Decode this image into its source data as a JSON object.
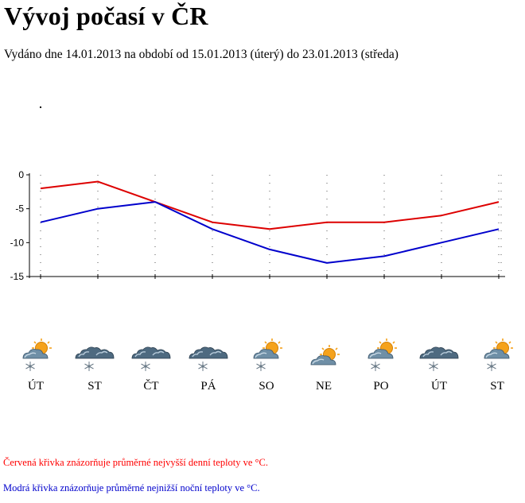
{
  "page": {
    "title": "Vývoj počasí v ČR",
    "subtitle": "Vydáno dne 14.01.2013 na období od 15.01.2013 (úterý) do 23.01.2013 (středa)",
    "note_red": "Červená křivka znázorňuje průměrné nejvyšší denní teploty ve °C.",
    "note_blue": "Modrá křivka znázorňuje průměrné nejnižší noční teploty ve °C."
  },
  "colors": {
    "max_line": "#dd0000",
    "min_line": "#0000cc"
  },
  "chart_data": {
    "type": "line",
    "categories": [
      "ÚT",
      "ST",
      "ČT",
      "PÁ",
      "SO",
      "NE",
      "PO",
      "ÚT",
      "ST"
    ],
    "series": [
      {
        "values": [
          -2,
          -1,
          -4,
          -7,
          -8,
          -7,
          -7,
          -6,
          -4
        ]
      },
      {
        "values": [
          -7,
          -5,
          -4,
          -8,
          -11,
          -13,
          -12,
          -10,
          -8
        ]
      }
    ],
    "yticks": [
      0,
      -5,
      -10,
      -15
    ],
    "ylim": [
      -15,
      0
    ],
    "grid": "dotted"
  },
  "forecast": [
    {
      "day": "ÚT",
      "icon": "partly-cloudy-snow-icon"
    },
    {
      "day": "ST",
      "icon": "cloudy-snow-icon"
    },
    {
      "day": "ČT",
      "icon": "cloudy-snow-icon"
    },
    {
      "day": "PÁ",
      "icon": "cloudy-snow-icon"
    },
    {
      "day": "SO",
      "icon": "partly-cloudy-snow-icon"
    },
    {
      "day": "NE",
      "icon": "partly-cloudy-icon"
    },
    {
      "day": "PO",
      "icon": "partly-cloudy-snow-icon"
    },
    {
      "day": "ÚT",
      "icon": "cloudy-snow-icon"
    },
    {
      "day": "ST",
      "icon": "partly-cloudy-snow-icon"
    }
  ]
}
